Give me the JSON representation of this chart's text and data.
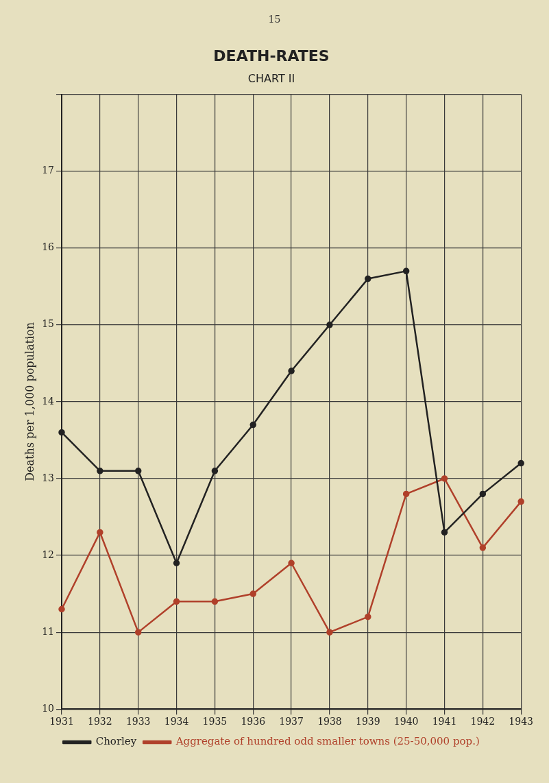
{
  "chart_data": {
    "type": "line",
    "title": "DEATH-RATES",
    "subtitle": "CHART II",
    "ylabel": "Deaths per 1,000 population",
    "annotations": [
      "15"
    ],
    "categories": [
      "1931",
      "1932",
      "1933",
      "1934",
      "1935",
      "1936",
      "1937",
      "1938",
      "1939",
      "1940",
      "1941",
      "1942",
      "1943"
    ],
    "series": [
      {
        "name": "Chorley",
        "color": "#222222",
        "values": [
          13.6,
          13.1,
          13.1,
          11.9,
          13.1,
          13.7,
          14.4,
          15.0,
          15.6,
          15.7,
          12.3,
          12.8,
          13.2
        ]
      },
      {
        "name": "Aggregate of hundred odd smaller towns (25-50,000 pop.)",
        "color": "#b0402a",
        "values": [
          11.3,
          12.3,
          11.0,
          11.4,
          11.4,
          11.5,
          11.9,
          11.0,
          11.2,
          12.8,
          13.0,
          12.1,
          12.7
        ]
      }
    ],
    "ylim": [
      10,
      18
    ],
    "yticks": [
      10,
      11,
      12,
      13,
      14,
      15,
      16,
      17,
      {
        "value": 18,
        "label": null
      }
    ],
    "grid": true,
    "legend": "bottom",
    "marker": "circle",
    "line_style": "solid"
  }
}
